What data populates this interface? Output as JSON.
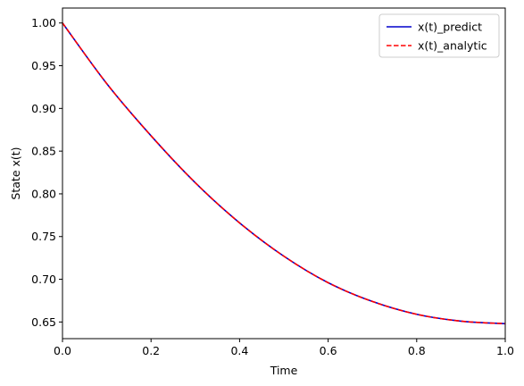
{
  "chart_data": {
    "type": "line",
    "xlabel": "Time",
    "ylabel": "State x(t)",
    "xlim": [
      0.0,
      1.0
    ],
    "ylim": [
      0.6305,
      1.0175
    ],
    "x_ticks": [
      "0.0",
      "0.2",
      "0.4",
      "0.6",
      "0.8",
      "1.0"
    ],
    "y_ticks": [
      "0.65",
      "0.70",
      "0.75",
      "0.80",
      "0.85",
      "0.90",
      "0.95",
      "1.00"
    ],
    "grid": false,
    "legend_position": "top-right",
    "x": [
      0.0,
      0.1,
      0.2,
      0.3,
      0.4,
      0.5,
      0.6,
      0.7,
      0.8,
      0.9,
      1.0
    ],
    "series": [
      {
        "name": "x(t)_predict",
        "color": "#0000cc",
        "style": "solid",
        "values": [
          1.0,
          0.929,
          0.868,
          0.813,
          0.766,
          0.727,
          0.696,
          0.674,
          0.659,
          0.651,
          0.648
        ]
      },
      {
        "name": "x(t)_analytic",
        "color": "#ff0000",
        "style": "dashed",
        "values": [
          1.0,
          0.929,
          0.868,
          0.813,
          0.766,
          0.727,
          0.696,
          0.674,
          0.659,
          0.651,
          0.648
        ]
      }
    ]
  }
}
